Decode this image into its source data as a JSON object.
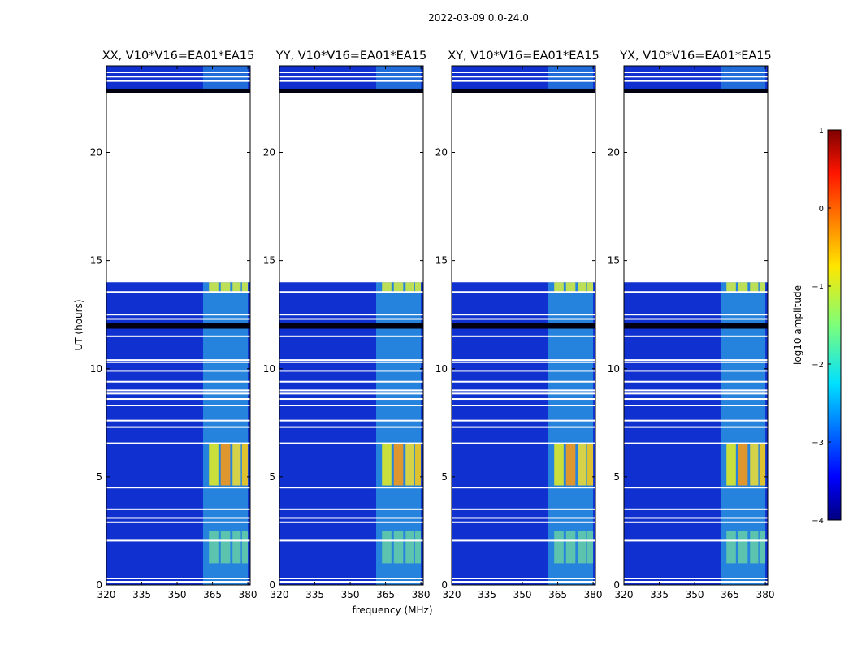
{
  "figure": {
    "suptitle": "2022-03-09 0.0-24.0",
    "ylabel": "UT (hours)",
    "xlabel": "frequency (MHz)"
  },
  "chart_data": {
    "type": "heatmap",
    "title": "2022-03-09 0.0-24.0",
    "xlabel": "frequency (MHz)",
    "ylabel": "UT (hours)",
    "xlim": [
      320,
      381
    ],
    "ylim": [
      0,
      24
    ],
    "x_ticks": [
      320,
      335,
      350,
      365,
      380
    ],
    "y_ticks": [
      0,
      5,
      10,
      15,
      20
    ],
    "x_tick_labels": [
      "320",
      "335",
      "350",
      "365",
      "380"
    ],
    "y_tick_labels": [
      "0",
      "5",
      "10",
      "15",
      "20"
    ],
    "panels": [
      {
        "name": "XX",
        "title": "XX, V10*V16=EA01*EA15"
      },
      {
        "name": "YY",
        "title": "YY, V10*V16=EA01*EA15"
      },
      {
        "name": "XY",
        "title": "XY, V10*V16=EA01*EA15"
      },
      {
        "name": "YX",
        "title": "YX, V10*V16=EA01*EA15"
      }
    ],
    "blank_ranges_hours": [
      [
        14.0,
        22.8
      ]
    ],
    "flag_lines_hours": [
      0.15,
      0.3,
      2.05,
      2.9,
      3.1,
      3.5,
      4.5,
      6.55,
      7.3,
      7.6,
      8.3,
      8.6,
      8.85,
      9.0,
      9.4,
      9.9,
      10.3,
      10.4,
      11.5,
      12.3,
      12.5,
      13.55,
      23.3,
      23.5,
      23.7
    ],
    "dark_bands_hours": [
      [
        11.85,
        12.1
      ],
      [
        22.75,
        22.95
      ]
    ],
    "colorbar": {
      "label": "log10 amplitude",
      "range": [
        -4,
        1
      ],
      "ticks": [
        -4,
        -3,
        -2,
        -1,
        0,
        1
      ],
      "tick_labels": [
        "−4",
        "−3",
        "−2",
        "−1",
        "0",
        "1"
      ],
      "colormap": "jet"
    },
    "background_color": "#1030d0"
  }
}
